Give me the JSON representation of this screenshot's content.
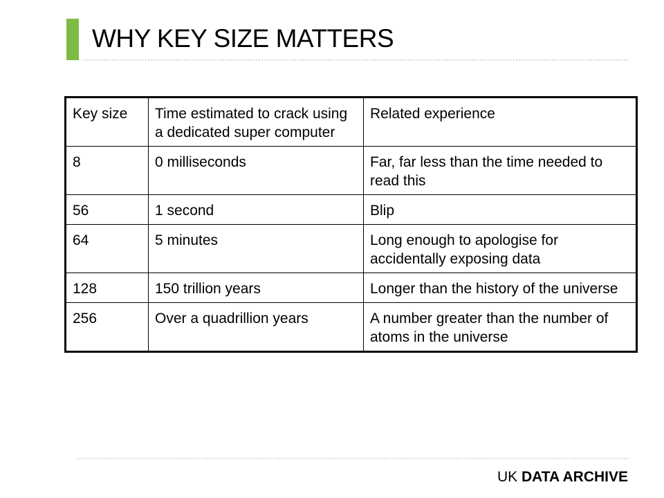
{
  "title": "WHY KEY SIZE MATTERS",
  "table": {
    "headers": [
      "Key size",
      "Time estimated to crack using a dedicated super computer",
      "Related experience"
    ],
    "rows": [
      [
        "8",
        "0 milliseconds",
        "Far, far less than the time needed to read this"
      ],
      [
        "56",
        "1 second",
        "Blip"
      ],
      [
        "64",
        "5 minutes",
        "Long enough to apologise for accidentally exposing data"
      ],
      [
        "128",
        "150 trillion years",
        "Longer than the history of the universe"
      ],
      [
        "256",
        "Over a quadrillion years",
        "A number greater than the number of atoms in the universe"
      ]
    ]
  },
  "footer": {
    "prefix": "UK",
    "bold": "DATA ARCHIVE"
  },
  "colors": {
    "accent": "#7dbb42",
    "divider": "#d8d8d8"
  }
}
